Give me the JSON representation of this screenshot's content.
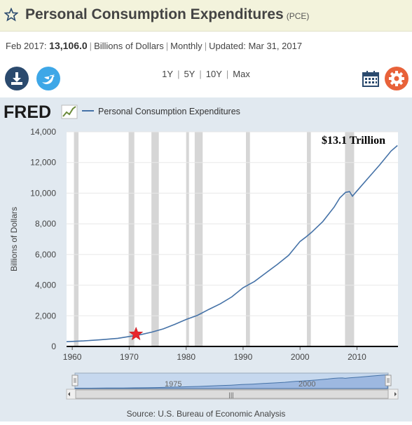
{
  "header": {
    "title": "Personal Consumption Expenditures",
    "tag": "(PCE)"
  },
  "meta": {
    "period": "Feb 2017:",
    "value": "13,106.0",
    "units": "Billions of Dollars",
    "frequency": "Monthly",
    "updated": "Updated: Mar 31, 2017"
  },
  "toolbar": {
    "ranges": [
      "1Y",
      "5Y",
      "10Y",
      "Max"
    ]
  },
  "logo_text": "FRED",
  "source": "Source: U.S. Bureau of Economic Analysis",
  "annotation": "$13.1 Trillion",
  "navigator_labels": [
    "1975",
    "2000"
  ],
  "colors": {
    "line": "#4572a7",
    "marker": "#e8242c",
    "recession": "#d6d6d6",
    "background": "#e1e9f0"
  },
  "chart_data": {
    "type": "line",
    "legend": [
      "Personal Consumption Expenditures"
    ],
    "ylabel": "Billions of Dollars",
    "ylim": [
      0,
      14000
    ],
    "xlim": [
      1959,
      2017.2
    ],
    "yticks": [
      0,
      2000,
      4000,
      6000,
      8000,
      10000,
      12000,
      14000
    ],
    "ytick_labels": [
      "0",
      "2,000",
      "4,000",
      "6,000",
      "8,000",
      "10,000",
      "12,000",
      "14,000"
    ],
    "xticks": [
      1960,
      1970,
      1980,
      1990,
      2000,
      2010
    ],
    "recessions": [
      [
        1960.3,
        1961.1
      ],
      [
        1969.9,
        1970.9
      ],
      [
        1973.9,
        1975.2
      ],
      [
        1980.0,
        1980.5
      ],
      [
        1981.5,
        1982.9
      ],
      [
        1990.5,
        1991.2
      ],
      [
        2001.2,
        2001.9
      ],
      [
        2007.9,
        2009.5
      ]
    ],
    "marker": {
      "x": 1971.2,
      "y": 800
    },
    "series": [
      {
        "name": "Personal Consumption Expenditures",
        "x": [
          1959,
          1962,
          1965,
          1968,
          1970,
          1972,
          1974,
          1976,
          1978,
          1980,
          1982,
          1984,
          1986,
          1988,
          1990,
          1992,
          1994,
          1996,
          1998,
          2000,
          2001,
          2002,
          2004,
          2006,
          2007,
          2008,
          2008.7,
          2009.2,
          2010,
          2012,
          2014,
          2016,
          2017.1
        ],
        "y": [
          310,
          360,
          440,
          530,
          650,
          770,
          940,
          1150,
          1440,
          1760,
          2030,
          2420,
          2780,
          3230,
          3830,
          4240,
          4800,
          5350,
          5950,
          6850,
          7130,
          7440,
          8150,
          9100,
          9700,
          10050,
          10100,
          9800,
          10150,
          11000,
          11850,
          12750,
          13106
        ]
      }
    ]
  }
}
